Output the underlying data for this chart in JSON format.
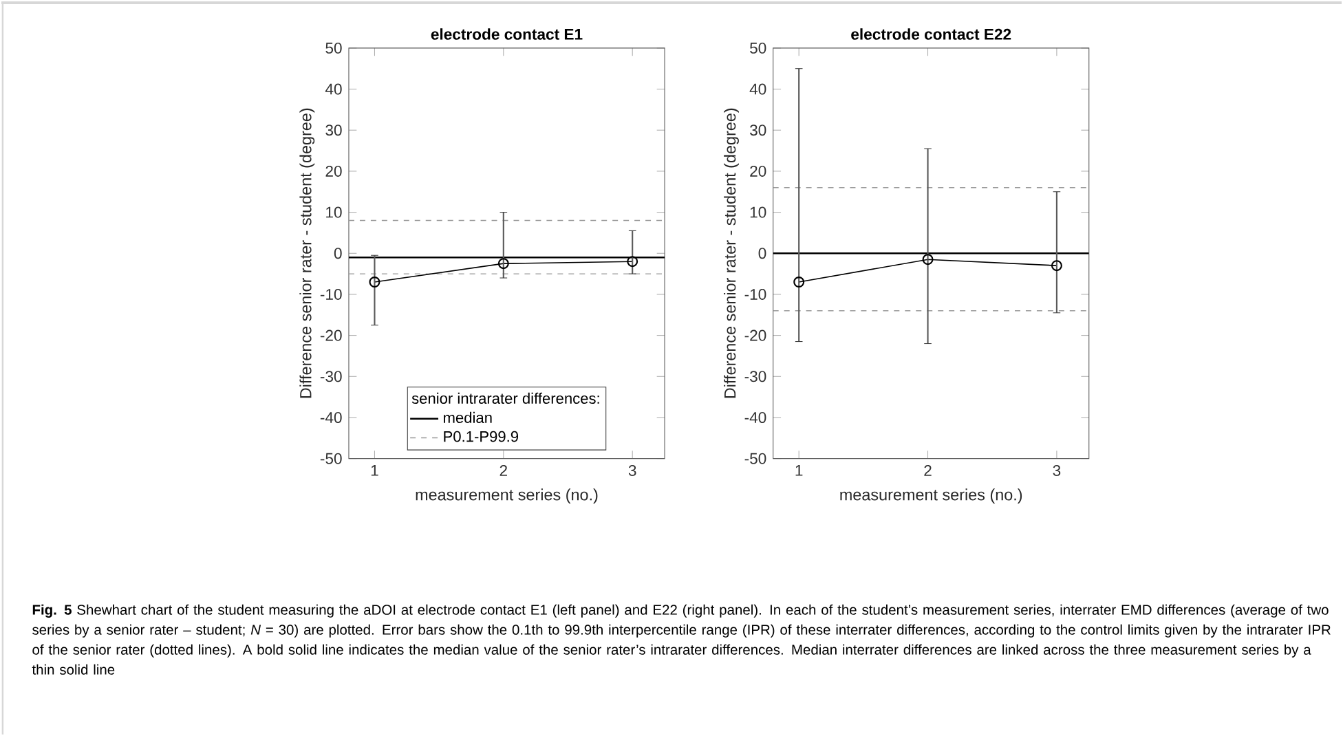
{
  "chart_data": [
    {
      "type": "line",
      "title": "electrode contact E1",
      "xlabel": "measurement series (no.)",
      "ylabel": "Difference senior rater - student (degree)",
      "x": [
        1,
        2,
        3
      ],
      "xlim": [
        0.8,
        3.25
      ],
      "xticks": [
        1,
        2,
        3
      ],
      "ylim": [
        -50,
        50
      ],
      "yticks": [
        -50,
        -40,
        -30,
        -20,
        -10,
        0,
        10,
        20,
        30,
        40,
        50
      ],
      "series": [
        {
          "color": "#000000",
          "values": [
            -7,
            -2.5,
            -2
          ],
          "errors": [
            [
              -17.5,
              -0.5
            ],
            [
              -6,
              10
            ],
            [
              -5,
              5.5
            ]
          ]
        }
      ],
      "ref_lines": [
        {
          "axis": "y",
          "value": -1,
          "label": "median",
          "color": "#000000",
          "line_style": "solid"
        },
        {
          "axis": "y",
          "value": 8,
          "label": "P0.1-P99.9",
          "color": "#999999",
          "line_style": "dashed"
        },
        {
          "axis": "y",
          "value": -5,
          "color": "#999999",
          "line_style": "dashed"
        }
      ],
      "legend_title": "senior intrarater differences:",
      "legend": "bottom",
      "marker": "circle",
      "line_style": "solid",
      "grid": false,
      "annotations": [
        "**Fig. 5** Shewhart chart of the student measuring the aDOI at electrode contact E1 (left panel) and E22 (right panel). In each of the student’s measurement series, interrater EMD differences (average of two series by a senior rater – student; *N* = 30) are plotted. Error bars show the 0.1th to 99.9th interpercentile range (IPR) of these interrater differences, according to the control limits given by the intrarater IPR of the senior rater (dotted lines). A bold solid line indicates the median value of the senior rater’s intrarater differences. Median interrater differences are linked across the three measurement series by a thin solid line"
      ]
    },
    {
      "type": "line",
      "title": "electrode contact E22",
      "xlabel": "measurement series (no.)",
      "ylabel": "Difference senior rater - student (degree)",
      "x": [
        1,
        2,
        3
      ],
      "xlim": [
        0.8,
        3.25
      ],
      "xticks": [
        1,
        2,
        3
      ],
      "ylim": [
        -50,
        50
      ],
      "yticks": [
        -50,
        -40,
        -30,
        -20,
        -10,
        0,
        10,
        20,
        30,
        40,
        50
      ],
      "series": [
        {
          "color": "#000000",
          "values": [
            -7,
            -1.5,
            -3
          ],
          "errors": [
            [
              -21.5,
              45
            ],
            [
              -22,
              25.5
            ],
            [
              -14.5,
              15
            ]
          ]
        }
      ],
      "ref_lines": [
        {
          "axis": "y",
          "value": 0,
          "color": "#000000",
          "line_style": "solid"
        },
        {
          "axis": "y",
          "value": 16,
          "color": "#999999",
          "line_style": "dashed"
        },
        {
          "axis": "y",
          "value": -14,
          "color": "#999999",
          "line_style": "dashed"
        }
      ],
      "marker": "circle",
      "line_style": "solid",
      "grid": false
    }
  ]
}
